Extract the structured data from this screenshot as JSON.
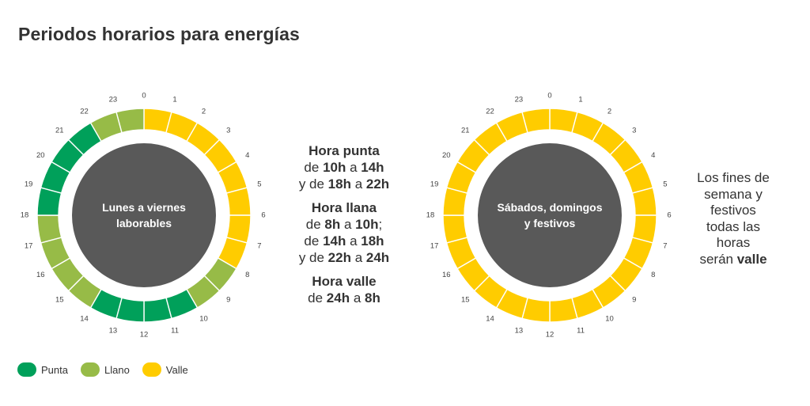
{
  "title": "Periodos horarios para energías",
  "colors": {
    "punta": "#00a05a",
    "llano": "#97bb47",
    "valle": "#ffcc00",
    "center": "#595959"
  },
  "chart_data": [
    {
      "type": "pie",
      "name": "weekday",
      "center_label": [
        "Lunes a viernes",
        "laborables"
      ],
      "hour_labels": [
        "0",
        "1",
        "2",
        "3",
        "4",
        "5",
        "6",
        "7",
        "8",
        "9",
        "10",
        "11",
        "12",
        "13",
        "14",
        "15",
        "16",
        "17",
        "18",
        "19",
        "20",
        "21",
        "22",
        "23"
      ],
      "hours": [
        "valle",
        "valle",
        "valle",
        "valle",
        "valle",
        "valle",
        "valle",
        "valle",
        "llano",
        "llano",
        "punta",
        "punta",
        "punta",
        "punta",
        "llano",
        "llano",
        "llano",
        "llano",
        "punta",
        "punta",
        "punta",
        "punta",
        "llano",
        "llano"
      ]
    },
    {
      "type": "pie",
      "name": "weekend",
      "center_label": [
        "Sábados, domingos",
        "y festivos"
      ],
      "hour_labels": [
        "0",
        "1",
        "2",
        "3",
        "4",
        "5",
        "6",
        "7",
        "8",
        "9",
        "10",
        "11",
        "12",
        "13",
        "14",
        "15",
        "16",
        "17",
        "18",
        "19",
        "20",
        "21",
        "22",
        "23"
      ],
      "hours": [
        "valle",
        "valle",
        "valle",
        "valle",
        "valle",
        "valle",
        "valle",
        "valle",
        "valle",
        "valle",
        "valle",
        "valle",
        "valle",
        "valle",
        "valle",
        "valle",
        "valle",
        "valle",
        "valle",
        "valle",
        "valle",
        "valle",
        "valle",
        "valle"
      ]
    }
  ],
  "info": {
    "punta": {
      "title": "Hora punta",
      "l1": [
        "de ",
        "10h",
        " a ",
        "14h"
      ],
      "l2": [
        "y de ",
        "18h",
        " a ",
        "22h"
      ]
    },
    "llana": {
      "title": "Hora llana",
      "l1": [
        "de ",
        "8h",
        " a ",
        "10h",
        ";"
      ],
      "l2": [
        "de ",
        "14h",
        " a ",
        "18h"
      ],
      "l3": [
        "y de ",
        "22h",
        " a ",
        "24h"
      ]
    },
    "valle": {
      "title": "Hora valle",
      "l1": [
        "de ",
        "24h",
        " a ",
        "8h"
      ]
    }
  },
  "weekend_note": {
    "l1": "Los fines de",
    "l2": "semana y",
    "l3": "festivos",
    "l4": "todas las",
    "l5": "horas",
    "l6_pre": "serán ",
    "l6_bold": "valle"
  },
  "legend": [
    {
      "key": "punta",
      "label": "Punta"
    },
    {
      "key": "llano",
      "label": "Llano"
    },
    {
      "key": "valle",
      "label": "Valle"
    }
  ]
}
